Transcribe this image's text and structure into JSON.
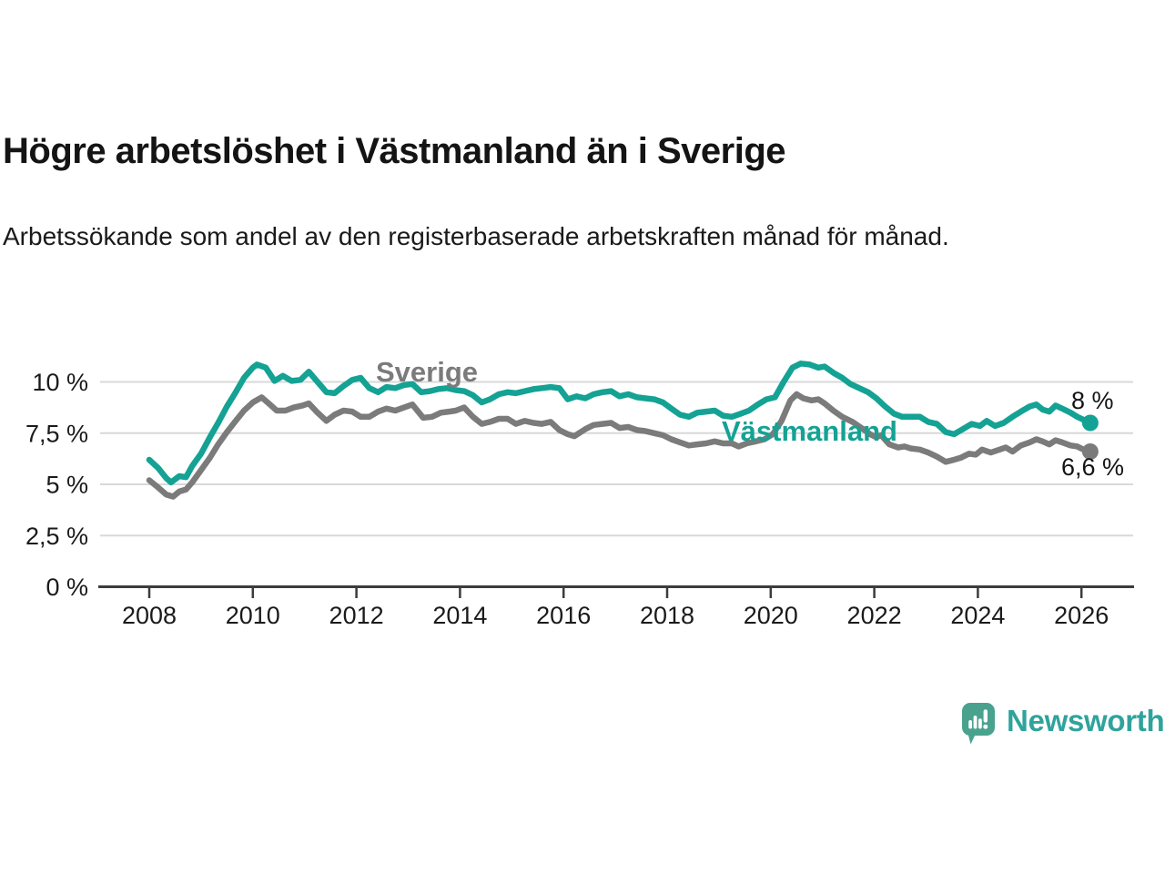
{
  "header": {
    "title": "Högre arbetslöshet i Västmanland än i Sverige",
    "subtitle": "Arbetssökande som andel av den registerbaserade arbetskraften månad för månad."
  },
  "chart_data": {
    "type": "line",
    "unit": "%",
    "xlabel": "",
    "ylabel": "",
    "xlim": [
      2007.8,
      2027.0
    ],
    "ylim": [
      0,
      11.5
    ],
    "grid": "horizontal",
    "xticks": [
      2008,
      2010,
      2012,
      2014,
      2016,
      2018,
      2020,
      2022,
      2024,
      2026
    ],
    "yticks": [
      0,
      2.5,
      5,
      7.5,
      10
    ],
    "ytick_labels": [
      "0 %",
      "2,5 %",
      "5 %",
      "7,5 %",
      "10 %"
    ],
    "series": [
      {
        "name": "Sverige",
        "color": "#7b7b7b",
        "end_label": "6,6 %",
        "end_value": 6.6,
        "points": [
          [
            2008.0,
            5.2
          ],
          [
            2008.17,
            4.85
          ],
          [
            2008.33,
            4.5
          ],
          [
            2008.46,
            4.4
          ],
          [
            2008.58,
            4.65
          ],
          [
            2008.71,
            4.75
          ],
          [
            2008.83,
            5.1
          ],
          [
            2009.0,
            5.7
          ],
          [
            2009.17,
            6.3
          ],
          [
            2009.33,
            6.95
          ],
          [
            2009.5,
            7.55
          ],
          [
            2009.67,
            8.1
          ],
          [
            2009.83,
            8.6
          ],
          [
            2010.0,
            9.0
          ],
          [
            2010.17,
            9.25
          ],
          [
            2010.33,
            8.9
          ],
          [
            2010.46,
            8.6
          ],
          [
            2010.63,
            8.6
          ],
          [
            2010.79,
            8.75
          ],
          [
            2010.96,
            8.85
          ],
          [
            2011.08,
            8.95
          ],
          [
            2011.25,
            8.5
          ],
          [
            2011.42,
            8.1
          ],
          [
            2011.58,
            8.4
          ],
          [
            2011.75,
            8.6
          ],
          [
            2011.92,
            8.55
          ],
          [
            2012.08,
            8.3
          ],
          [
            2012.25,
            8.3
          ],
          [
            2012.42,
            8.55
          ],
          [
            2012.58,
            8.7
          ],
          [
            2012.75,
            8.6
          ],
          [
            2012.92,
            8.75
          ],
          [
            2013.08,
            8.9
          ],
          [
            2013.29,
            8.25
          ],
          [
            2013.46,
            8.3
          ],
          [
            2013.63,
            8.5
          ],
          [
            2013.79,
            8.55
          ],
          [
            2013.92,
            8.6
          ],
          [
            2014.08,
            8.75
          ],
          [
            2014.25,
            8.3
          ],
          [
            2014.42,
            7.95
          ],
          [
            2014.58,
            8.05
          ],
          [
            2014.75,
            8.2
          ],
          [
            2014.92,
            8.2
          ],
          [
            2015.08,
            7.95
          ],
          [
            2015.25,
            8.1
          ],
          [
            2015.42,
            8.0
          ],
          [
            2015.58,
            7.95
          ],
          [
            2015.75,
            8.05
          ],
          [
            2015.92,
            7.65
          ],
          [
            2016.08,
            7.45
          ],
          [
            2016.21,
            7.35
          ],
          [
            2016.42,
            7.7
          ],
          [
            2016.58,
            7.9
          ],
          [
            2016.75,
            7.95
          ],
          [
            2016.92,
            8.0
          ],
          [
            2017.08,
            7.75
          ],
          [
            2017.25,
            7.8
          ],
          [
            2017.42,
            7.65
          ],
          [
            2017.58,
            7.6
          ],
          [
            2017.75,
            7.5
          ],
          [
            2017.92,
            7.4
          ],
          [
            2018.08,
            7.2
          ],
          [
            2018.25,
            7.05
          ],
          [
            2018.42,
            6.9
          ],
          [
            2018.58,
            6.95
          ],
          [
            2018.75,
            7.0
          ],
          [
            2018.92,
            7.1
          ],
          [
            2019.08,
            7.0
          ],
          [
            2019.25,
            7.0
          ],
          [
            2019.38,
            6.85
          ],
          [
            2019.54,
            7.0
          ],
          [
            2019.71,
            7.1
          ],
          [
            2019.88,
            7.2
          ],
          [
            2020.04,
            7.45
          ],
          [
            2020.21,
            8.1
          ],
          [
            2020.38,
            9.1
          ],
          [
            2020.5,
            9.4
          ],
          [
            2020.63,
            9.2
          ],
          [
            2020.79,
            9.1
          ],
          [
            2020.92,
            9.15
          ],
          [
            2021.04,
            8.95
          ],
          [
            2021.21,
            8.6
          ],
          [
            2021.38,
            8.3
          ],
          [
            2021.58,
            8.05
          ],
          [
            2021.75,
            7.75
          ],
          [
            2021.92,
            7.45
          ],
          [
            2022.04,
            7.3
          ],
          [
            2022.13,
            7.4
          ],
          [
            2022.29,
            6.95
          ],
          [
            2022.46,
            6.8
          ],
          [
            2022.58,
            6.85
          ],
          [
            2022.71,
            6.75
          ],
          [
            2022.88,
            6.7
          ],
          [
            2023.04,
            6.55
          ],
          [
            2023.21,
            6.35
          ],
          [
            2023.38,
            6.1
          ],
          [
            2023.54,
            6.2
          ],
          [
            2023.67,
            6.3
          ],
          [
            2023.83,
            6.5
          ],
          [
            2023.96,
            6.45
          ],
          [
            2024.08,
            6.7
          ],
          [
            2024.25,
            6.55
          ],
          [
            2024.42,
            6.7
          ],
          [
            2024.54,
            6.8
          ],
          [
            2024.67,
            6.6
          ],
          [
            2024.83,
            6.9
          ],
          [
            2025.0,
            7.05
          ],
          [
            2025.13,
            7.2
          ],
          [
            2025.25,
            7.1
          ],
          [
            2025.38,
            6.95
          ],
          [
            2025.5,
            7.15
          ],
          [
            2025.63,
            7.05
          ],
          [
            2025.79,
            6.9
          ],
          [
            2025.92,
            6.85
          ],
          [
            2026.04,
            6.7
          ],
          [
            2026.17,
            6.6
          ]
        ]
      },
      {
        "name": "Västmanland",
        "color": "#14a294",
        "end_label": "8 %",
        "end_value": 8.0,
        "points": [
          [
            2008.0,
            6.2
          ],
          [
            2008.17,
            5.8
          ],
          [
            2008.33,
            5.3
          ],
          [
            2008.42,
            5.1
          ],
          [
            2008.58,
            5.4
          ],
          [
            2008.71,
            5.35
          ],
          [
            2008.83,
            5.9
          ],
          [
            2009.0,
            6.5
          ],
          [
            2009.17,
            7.3
          ],
          [
            2009.33,
            8.0
          ],
          [
            2009.5,
            8.8
          ],
          [
            2009.67,
            9.5
          ],
          [
            2009.83,
            10.2
          ],
          [
            2010.0,
            10.7
          ],
          [
            2010.08,
            10.85
          ],
          [
            2010.25,
            10.7
          ],
          [
            2010.42,
            10.05
          ],
          [
            2010.58,
            10.3
          ],
          [
            2010.75,
            10.05
          ],
          [
            2010.92,
            10.1
          ],
          [
            2011.08,
            10.5
          ],
          [
            2011.25,
            10.0
          ],
          [
            2011.42,
            9.5
          ],
          [
            2011.58,
            9.45
          ],
          [
            2011.75,
            9.8
          ],
          [
            2011.92,
            10.1
          ],
          [
            2012.08,
            10.2
          ],
          [
            2012.25,
            9.7
          ],
          [
            2012.42,
            9.5
          ],
          [
            2012.58,
            9.75
          ],
          [
            2012.75,
            9.7
          ],
          [
            2012.92,
            9.85
          ],
          [
            2013.08,
            9.9
          ],
          [
            2013.25,
            9.5
          ],
          [
            2013.42,
            9.55
          ],
          [
            2013.58,
            9.65
          ],
          [
            2013.75,
            9.7
          ],
          [
            2013.92,
            9.6
          ],
          [
            2014.08,
            9.55
          ],
          [
            2014.25,
            9.35
          ],
          [
            2014.42,
            9.0
          ],
          [
            2014.58,
            9.15
          ],
          [
            2014.75,
            9.4
          ],
          [
            2014.92,
            9.5
          ],
          [
            2015.08,
            9.45
          ],
          [
            2015.25,
            9.55
          ],
          [
            2015.42,
            9.65
          ],
          [
            2015.58,
            9.7
          ],
          [
            2015.75,
            9.75
          ],
          [
            2015.92,
            9.7
          ],
          [
            2016.08,
            9.15
          ],
          [
            2016.25,
            9.3
          ],
          [
            2016.42,
            9.2
          ],
          [
            2016.58,
            9.4
          ],
          [
            2016.75,
            9.5
          ],
          [
            2016.92,
            9.55
          ],
          [
            2017.08,
            9.3
          ],
          [
            2017.25,
            9.4
          ],
          [
            2017.42,
            9.25
          ],
          [
            2017.58,
            9.2
          ],
          [
            2017.75,
            9.15
          ],
          [
            2017.92,
            9.0
          ],
          [
            2018.08,
            8.7
          ],
          [
            2018.25,
            8.4
          ],
          [
            2018.42,
            8.3
          ],
          [
            2018.58,
            8.5
          ],
          [
            2018.75,
            8.55
          ],
          [
            2018.92,
            8.6
          ],
          [
            2019.08,
            8.35
          ],
          [
            2019.25,
            8.3
          ],
          [
            2019.42,
            8.45
          ],
          [
            2019.58,
            8.6
          ],
          [
            2019.75,
            8.9
          ],
          [
            2019.92,
            9.15
          ],
          [
            2020.08,
            9.25
          ],
          [
            2020.25,
            10.0
          ],
          [
            2020.42,
            10.7
          ],
          [
            2020.58,
            10.9
          ],
          [
            2020.75,
            10.85
          ],
          [
            2020.92,
            10.7
          ],
          [
            2021.04,
            10.75
          ],
          [
            2021.21,
            10.45
          ],
          [
            2021.38,
            10.2
          ],
          [
            2021.54,
            9.9
          ],
          [
            2021.71,
            9.7
          ],
          [
            2021.88,
            9.5
          ],
          [
            2022.04,
            9.2
          ],
          [
            2022.21,
            8.8
          ],
          [
            2022.38,
            8.45
          ],
          [
            2022.54,
            8.3
          ],
          [
            2022.71,
            8.3
          ],
          [
            2022.88,
            8.3
          ],
          [
            2023.04,
            8.05
          ],
          [
            2023.21,
            7.95
          ],
          [
            2023.38,
            7.55
          ],
          [
            2023.54,
            7.45
          ],
          [
            2023.71,
            7.7
          ],
          [
            2023.88,
            7.95
          ],
          [
            2024.04,
            7.85
          ],
          [
            2024.17,
            8.1
          ],
          [
            2024.33,
            7.85
          ],
          [
            2024.5,
            8.0
          ],
          [
            2024.67,
            8.3
          ],
          [
            2024.83,
            8.55
          ],
          [
            2025.0,
            8.8
          ],
          [
            2025.13,
            8.9
          ],
          [
            2025.25,
            8.65
          ],
          [
            2025.38,
            8.55
          ],
          [
            2025.5,
            8.85
          ],
          [
            2025.63,
            8.7
          ],
          [
            2025.79,
            8.5
          ],
          [
            2025.92,
            8.3
          ],
          [
            2026.04,
            8.15
          ],
          [
            2026.17,
            8.0
          ]
        ]
      }
    ]
  },
  "branding": {
    "logo_text": "Newsworthy",
    "logo_icon": "bar-chart-speech-bubble-icon",
    "logo_bubble_color": "#49a28e",
    "logo_text_color": "#2fa39c"
  },
  "style": {
    "gridline_color": "#d8d8d8",
    "axis_color": "#3c3c3c",
    "text_color": "#1a1a1a",
    "background": "#ffffff"
  }
}
